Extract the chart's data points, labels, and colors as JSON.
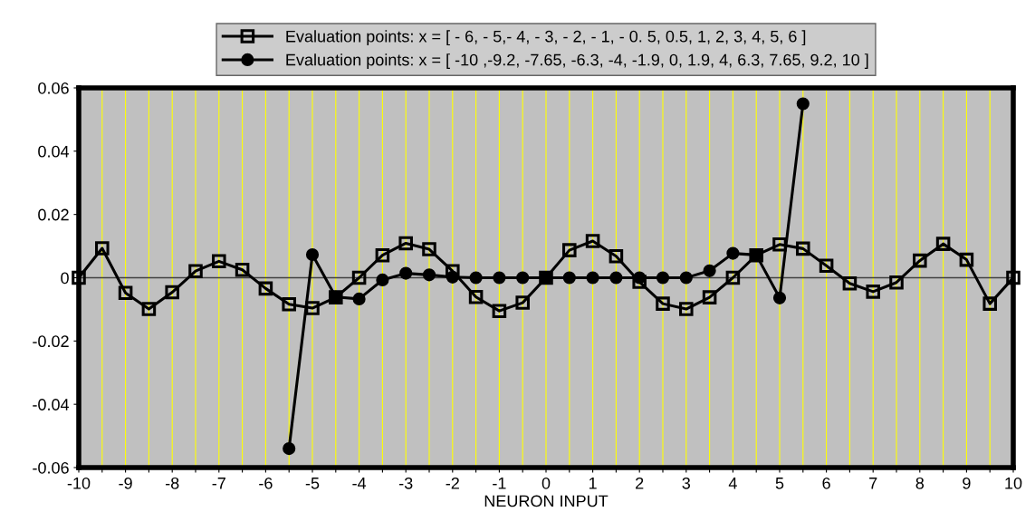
{
  "chart_data": {
    "type": "line",
    "xlabel": "NEURON INPUT",
    "xlim": [
      -10,
      10
    ],
    "xticks": [
      -10,
      {
        "value": -9.5,
        "label": null
      },
      -9,
      {
        "value": -8.5,
        "label": null
      },
      -8,
      {
        "value": -7.5,
        "label": null
      },
      -7,
      {
        "value": -6.5,
        "label": null
      },
      -6,
      {
        "value": -5.5,
        "label": null
      },
      -5,
      {
        "value": -4.5,
        "label": null
      },
      -4,
      {
        "value": -3.5,
        "label": null
      },
      -3,
      {
        "value": -2.5,
        "label": null
      },
      -2,
      {
        "value": -1.5,
        "label": null
      },
      -1,
      {
        "value": -0.5,
        "label": null
      },
      0,
      {
        "value": 0.5,
        "label": null
      },
      1,
      {
        "value": 1.5,
        "label": null
      },
      2,
      {
        "value": 2.5,
        "label": null
      },
      3,
      {
        "value": 3.5,
        "label": null
      },
      4,
      {
        "value": 4.5,
        "label": null
      },
      5,
      {
        "value": 5.5,
        "label": null
      },
      6,
      {
        "value": 6.5,
        "label": null
      },
      7,
      {
        "value": 7.5,
        "label": null
      },
      8,
      {
        "value": 8.5,
        "label": null
      },
      9,
      {
        "value": 9.5,
        "label": null
      },
      10
    ],
    "ylim": [
      -0.06,
      0.06
    ],
    "yticks": [
      -0.06,
      -0.04,
      -0.02,
      0,
      0.02,
      0.04,
      0.06
    ],
    "grid": "x",
    "legend": "top",
    "ref_lines": [
      {
        "axis": "y",
        "value": 0,
        "color": "#404040"
      }
    ],
    "series": [
      {
        "name": "Evaluation points: x = [ - 6, - 5,- 4, - 3, - 2, - 1, - 0. 5, 0.5, 1, 2, 3, 4, 5, 6 ]",
        "color": "#000000",
        "marker": "square",
        "x": [
          -10,
          -9.5,
          -9,
          -8.5,
          -8,
          -7.5,
          -7,
          -6.5,
          -6,
          -5.5,
          -5,
          -4.5,
          -4,
          -3.5,
          -3,
          -2.5,
          -2,
          -1.5,
          -1,
          -0.5,
          0,
          0.5,
          1,
          1.5,
          2,
          2.5,
          3,
          3.5,
          4,
          4.5,
          5,
          5.5,
          6,
          6.5,
          7,
          7.5,
          8,
          8.5,
          9,
          9.5,
          10
        ],
        "values": [
          0,
          0.0093,
          -0.0048,
          -0.0099,
          -0.0046,
          0.0021,
          0.0052,
          0.0025,
          -0.0034,
          -0.0084,
          -0.0096,
          -0.0062,
          0,
          0.0071,
          0.0109,
          0.009,
          0.0021,
          -0.0061,
          -0.0105,
          -0.0079,
          0,
          0.0087,
          0.0116,
          0.0068,
          -0.0013,
          -0.0082,
          -0.0099,
          -0.0062,
          0,
          0.0071,
          0.0105,
          0.0092,
          0.0038,
          -0.0018,
          -0.0044,
          -0.0015,
          0.0054,
          0.0107,
          0.0057,
          -0.0082,
          0
        ]
      },
      {
        "name": "Evaluation points: x = [ -10 ,-9.2, -7.65, -6.3, -4, -1.9, 0, 1.9, 4, 6.3, 7.65, 9.2, 10 ]",
        "color": "#000000",
        "marker": "circle",
        "x": [
          -5.5,
          -5,
          -4.5,
          -4,
          -3.5,
          -3,
          -2.5,
          -2,
          -1.5,
          -1,
          -0.5,
          0,
          0.5,
          1,
          1.5,
          2,
          2.5,
          3,
          3.5,
          4,
          4.5,
          5,
          5.5
        ],
        "values": [
          -0.054,
          0.0073,
          -0.0061,
          -0.0067,
          -0.0007,
          0.0014,
          0.0009,
          0.0002,
          0,
          0,
          0,
          0,
          0,
          0,
          0,
          0,
          0,
          0,
          0.0022,
          0.0077,
          0.0072,
          -0.0064,
          0.055
        ]
      }
    ]
  }
}
